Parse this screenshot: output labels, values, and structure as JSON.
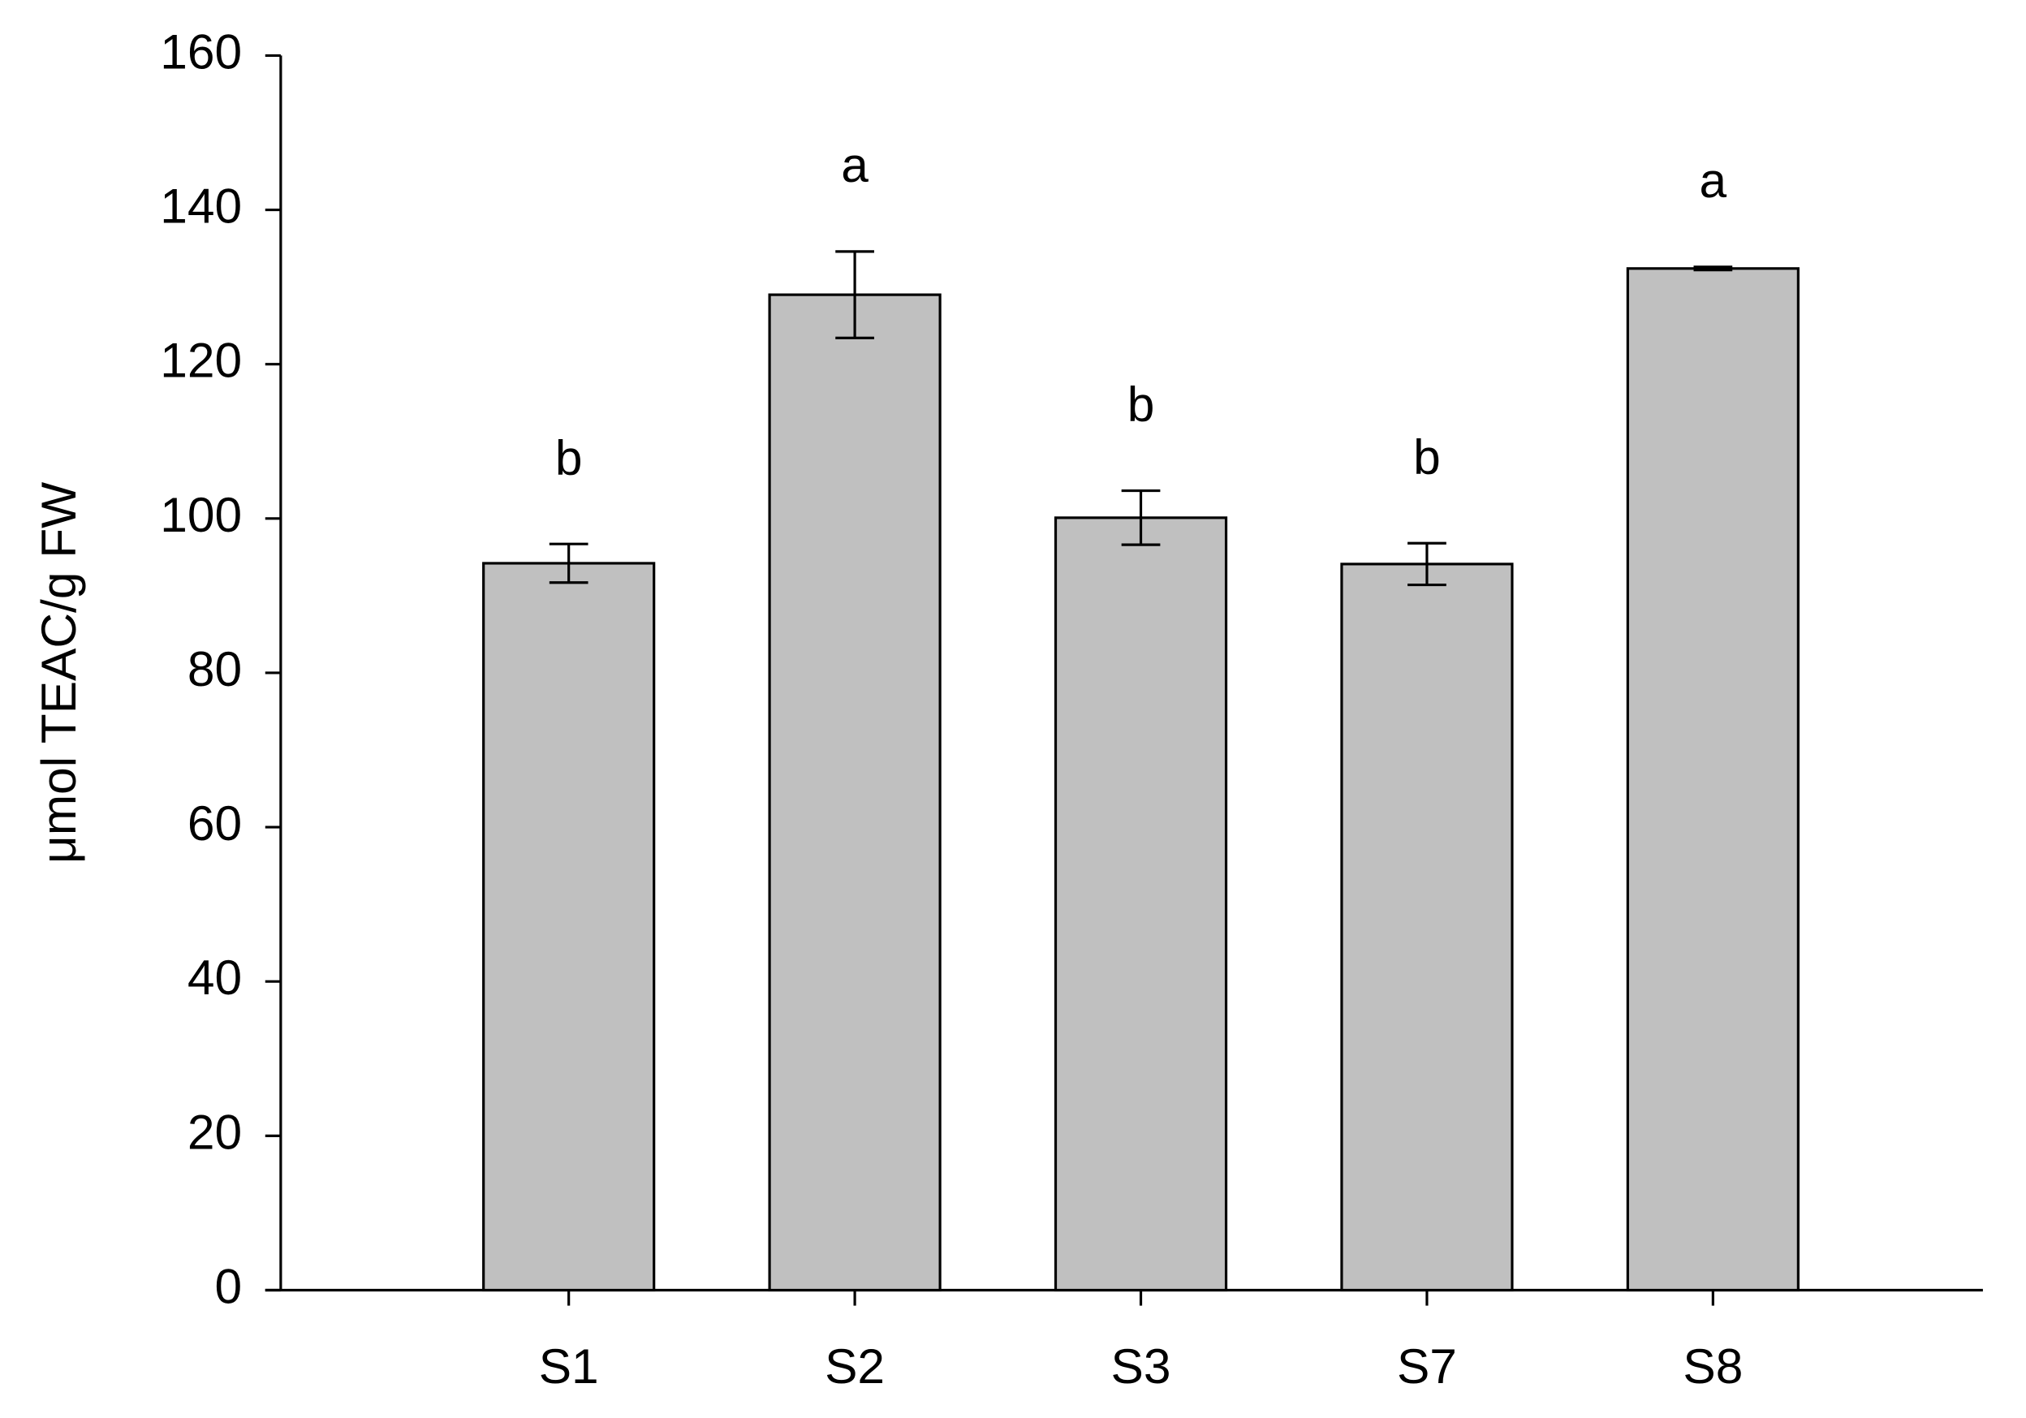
{
  "chart_data": {
    "type": "bar",
    "y_label": "μmol TEAC/g FW",
    "categories": [
      "S1",
      "S2",
      "S3",
      "S7",
      "S8"
    ],
    "values": [
      94.2,
      129.0,
      100.1,
      94.1,
      132.4
    ],
    "errors": [
      2.5,
      5.6,
      3.5,
      2.7,
      0.2
    ],
    "group_labels": [
      "b",
      "a",
      "b",
      "b",
      "a"
    ],
    "color": "#c0c0c0",
    "ylim": [
      0,
      160
    ],
    "yticks": [
      0,
      20,
      40,
      60,
      80,
      100,
      120,
      140,
      160
    ],
    "grid": false
  }
}
